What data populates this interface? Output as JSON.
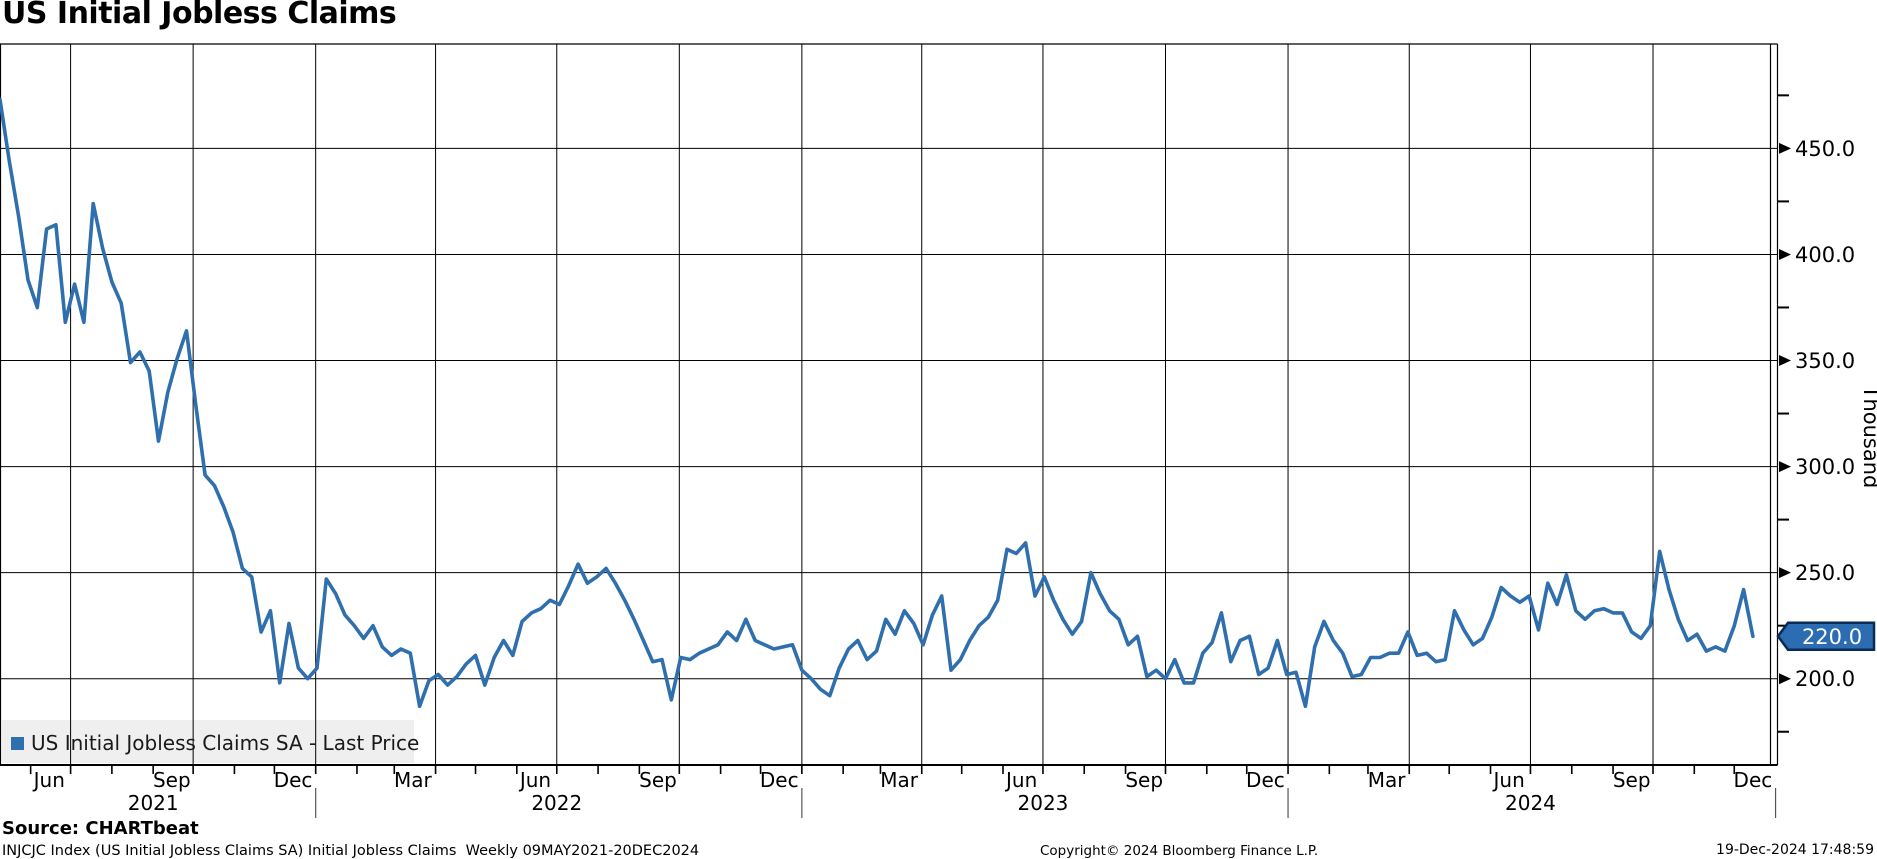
{
  "title": "US Initial Jobless Claims",
  "legend": {
    "swatch_color": "#2f6fad",
    "label": "US Initial Jobless Claims SA - Last Price"
  },
  "badge": {
    "value": "220.0",
    "fill": "#2b6cb3",
    "border": "#0a2b55",
    "text_color": "#ffffff"
  },
  "y_axis": {
    "unit_label": "Thousand",
    "tick_labels": [
      "450.0",
      "400.0",
      "350.0",
      "300.0",
      "250.0",
      "200.0"
    ],
    "tick_values": [
      450,
      400,
      350,
      300,
      250,
      200
    ],
    "minor_tick_values": [
      175,
      225,
      275,
      325,
      375,
      425,
      475
    ]
  },
  "x_axis": {
    "month_labels": [
      "Jun",
      "Sep",
      "Dec",
      "Mar",
      "Jun",
      "Sep",
      "Dec",
      "Mar",
      "Jun",
      "Sep",
      "Dec",
      "Mar",
      "Jun",
      "Sep",
      "Dec"
    ],
    "year_labels": [
      "2021",
      "2022",
      "2023",
      "2024"
    ]
  },
  "footer": {
    "source": "Source: CHARTbeat",
    "description": "INJCJC Index (US Initial Jobless Claims SA) Initial Jobless Claims  Weekly 09MAY2021-20DEC2024",
    "copyright": "Copyright© 2024 Bloomberg Finance L.P.",
    "timestamp": "19-Dec-2024 17:48:59"
  },
  "chart_data": {
    "type": "line",
    "title": "US Initial Jobless Claims",
    "series_name": "US Initial Jobless Claims SA - Last Price",
    "unit": "Thousand",
    "frequency": "weekly",
    "x_start": "2021-05-09",
    "x_end": "2024-12-20",
    "ylim": [
      160,
      497
    ],
    "y_gridlines": [
      200,
      250,
      300,
      350,
      400,
      450
    ],
    "grid": true,
    "legend_position": "bottom-left",
    "line_color": "#2f6fad",
    "last_value": 220.0,
    "values": [
      473,
      444,
      418,
      388,
      375,
      412,
      414,
      368,
      386,
      368,
      424,
      403,
      387,
      377,
      349,
      354,
      345,
      312,
      335,
      351,
      364,
      329,
      296,
      291,
      281,
      269,
      252,
      248,
      222,
      232,
      198,
      226,
      205,
      200,
      205,
      247,
      240,
      230,
      225,
      219,
      225,
      215,
      211,
      214,
      212,
      187,
      199,
      202,
      197,
      201,
      207,
      211,
      197,
      210,
      218,
      211,
      227,
      231,
      233,
      237,
      235,
      244,
      254,
      245,
      248,
      252,
      245,
      237,
      228,
      218,
      208,
      209,
      190,
      210,
      209,
      212,
      214,
      216,
      222,
      218,
      228,
      218,
      216,
      214,
      215,
      216,
      204,
      200,
      195,
      192,
      205,
      214,
      218,
      209,
      213,
      228,
      221,
      232,
      226,
      216,
      230,
      239,
      204,
      209,
      218,
      225,
      229,
      237,
      261,
      259,
      264,
      239,
      248,
      237,
      228,
      221,
      227,
      250,
      240,
      232,
      228,
      216,
      220,
      201,
      204,
      200,
      209,
      198,
      198,
      212,
      217,
      231,
      208,
      218,
      220,
      202,
      205,
      218,
      202,
      203,
      187,
      215,
      227,
      218,
      212,
      201,
      202,
      210,
      210,
      212,
      212,
      222,
      211,
      212,
      208,
      209,
      232,
      223,
      216,
      219,
      229,
      243,
      239,
      236,
      239,
      223,
      245,
      235,
      249,
      232,
      228,
      232,
      233,
      231,
      231,
      222,
      219,
      225,
      260,
      242,
      228,
      218,
      221,
      213,
      215,
      213,
      225,
      242,
      220
    ]
  }
}
